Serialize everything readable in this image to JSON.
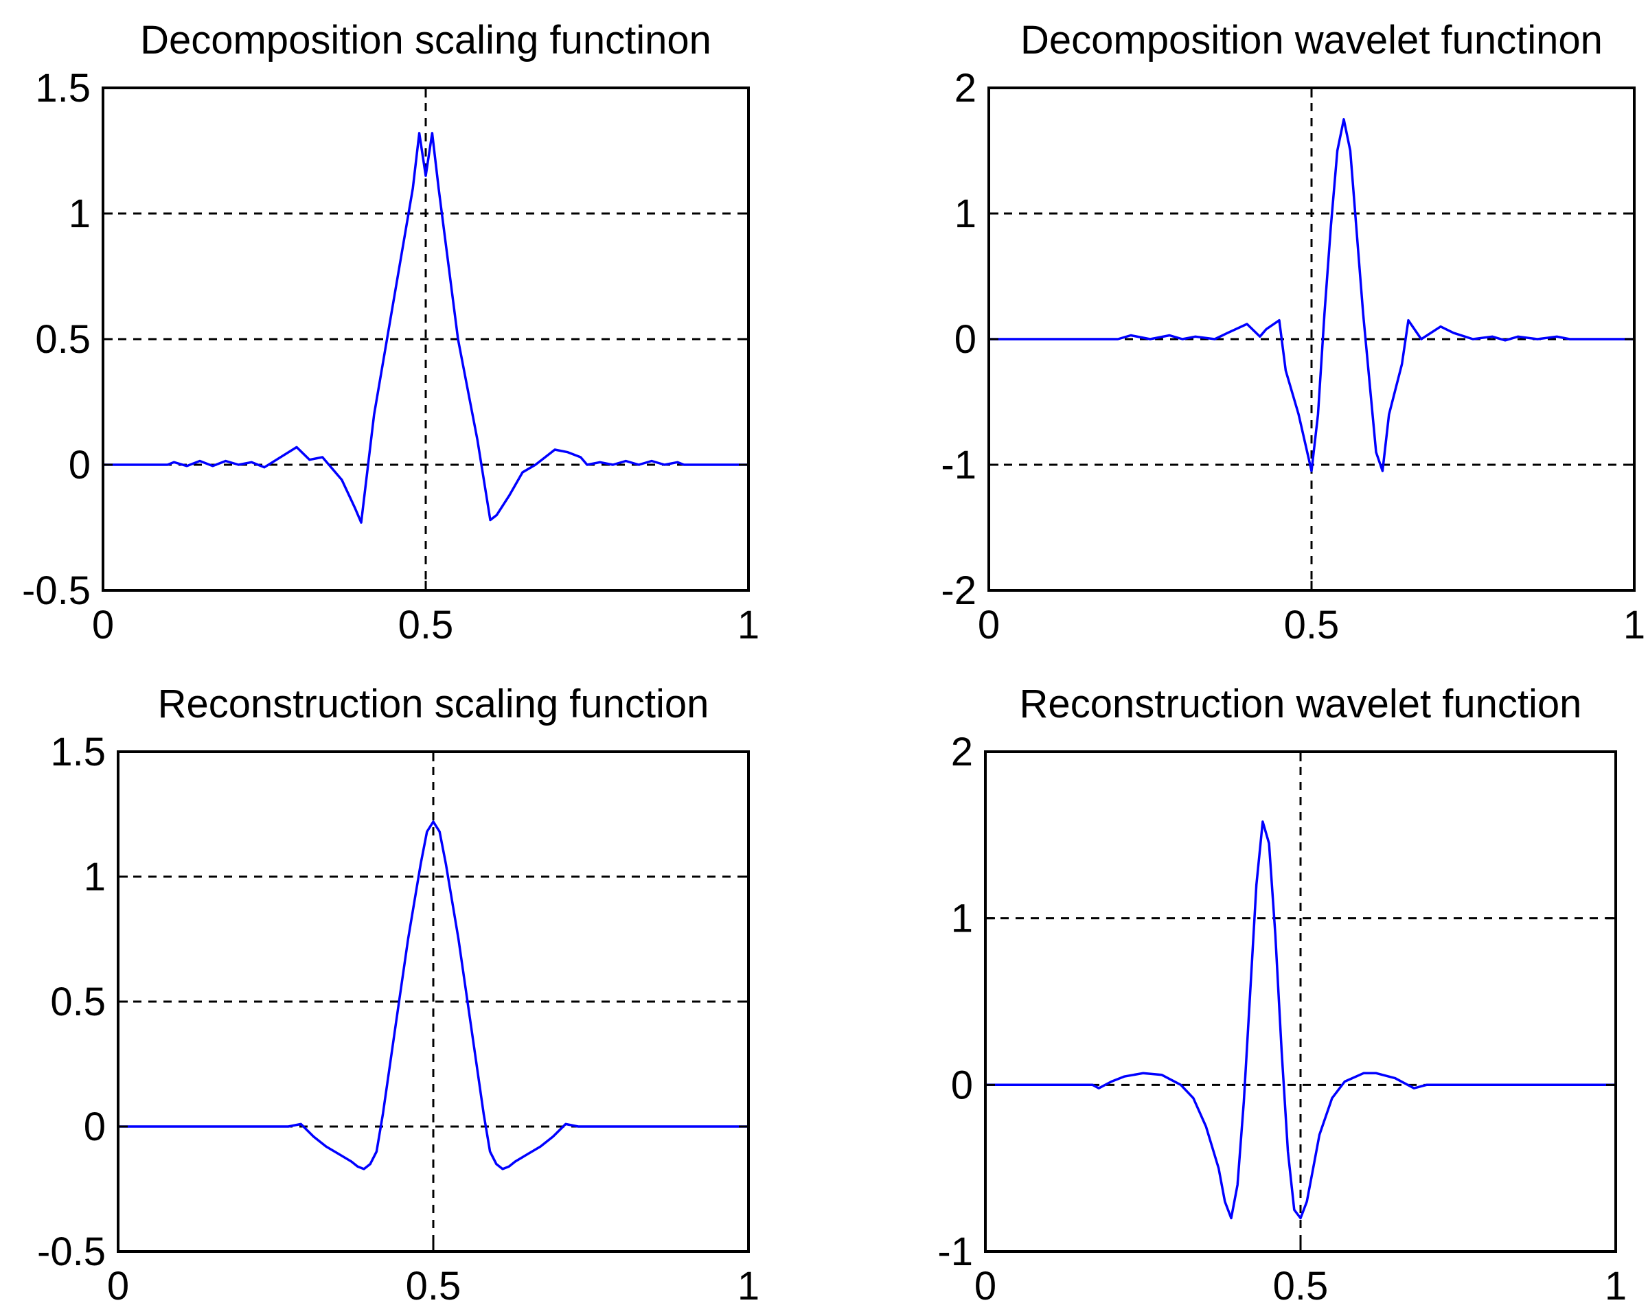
{
  "figure": {
    "background": "#ffffff"
  },
  "chart_data": [
    {
      "type": "line",
      "title": "Decomposition scaling functinon",
      "xlabel": "",
      "ylabel": "",
      "xlim": [
        0,
        1
      ],
      "ylim": [
        -0.5,
        1.5
      ],
      "xticks": [
        "0",
        "0.5",
        "1"
      ],
      "yticks": [
        "-0.5",
        "0",
        "0.5",
        "1",
        "1.5"
      ],
      "xtick_values": [
        0,
        0.5,
        1
      ],
      "ytick_values": [
        -0.5,
        0,
        0.5,
        1,
        1.5
      ],
      "grid": "dashed",
      "line_color": "#0000ff",
      "series": [
        {
          "name": "scaling",
          "x": [
            0,
            0.1,
            0.11,
            0.13,
            0.15,
            0.17,
            0.19,
            0.21,
            0.23,
            0.25,
            0.3,
            0.32,
            0.34,
            0.35,
            0.37,
            0.39,
            0.4,
            0.42,
            0.45,
            0.48,
            0.49,
            0.5,
            0.51,
            0.52,
            0.55,
            0.58,
            0.6,
            0.61,
            0.63,
            0.65,
            0.67,
            0.69,
            0.7,
            0.72,
            0.74,
            0.75,
            0.77,
            0.79,
            0.81,
            0.83,
            0.85,
            0.87,
            0.89,
            0.9,
            1
          ],
          "y": [
            0,
            0,
            0.01,
            -0.005,
            0.015,
            -0.005,
            0.015,
            0,
            0.01,
            -0.01,
            0.07,
            0.02,
            0.03,
            0.0,
            -0.06,
            -0.17,
            -0.23,
            0.2,
            0.65,
            1.1,
            1.32,
            1.15,
            1.32,
            1.1,
            0.5,
            0.1,
            -0.22,
            -0.2,
            -0.12,
            -0.03,
            0.0,
            0.04,
            0.06,
            0.05,
            0.03,
            0.0,
            0.01,
            0.0,
            0.015,
            0.0,
            0.015,
            0.0,
            0.01,
            0,
            0
          ]
        }
      ]
    },
    {
      "type": "line",
      "title": "Decomposition wavelet functinon",
      "xlabel": "",
      "ylabel": "",
      "xlim": [
        0,
        1
      ],
      "ylim": [
        -2,
        2
      ],
      "xticks": [
        "0",
        "0.5",
        "1"
      ],
      "yticks": [
        "-2",
        "-1",
        "0",
        "1",
        "2"
      ],
      "xtick_values": [
        0,
        0.5,
        1
      ],
      "ytick_values": [
        -2,
        -1,
        0,
        1,
        2
      ],
      "grid": "dashed",
      "line_color": "#0000ff",
      "series": [
        {
          "name": "wavelet",
          "x": [
            0,
            0.2,
            0.22,
            0.25,
            0.28,
            0.3,
            0.32,
            0.35,
            0.37,
            0.4,
            0.42,
            0.43,
            0.45,
            0.46,
            0.48,
            0.5,
            0.51,
            0.52,
            0.53,
            0.54,
            0.55,
            0.56,
            0.58,
            0.6,
            0.61,
            0.62,
            0.64,
            0.65,
            0.67,
            0.7,
            0.72,
            0.75,
            0.78,
            0.8,
            0.82,
            0.85,
            0.88,
            0.9,
            1
          ],
          "y": [
            0,
            0,
            0.03,
            0.0,
            0.03,
            0.0,
            0.02,
            0.0,
            0.05,
            0.12,
            0.02,
            0.08,
            0.15,
            -0.25,
            -0.6,
            -1.05,
            -0.6,
            0.2,
            0.9,
            1.5,
            1.75,
            1.5,
            0.2,
            -0.9,
            -1.05,
            -0.6,
            -0.2,
            0.15,
            0.0,
            0.1,
            0.05,
            0.0,
            0.02,
            -0.01,
            0.02,
            0.0,
            0.02,
            0,
            0
          ]
        }
      ]
    },
    {
      "type": "line",
      "title": "Reconstruction scaling function",
      "xlabel": "",
      "ylabel": "",
      "xlim": [
        0,
        1
      ],
      "ylim": [
        -0.5,
        1.5
      ],
      "xticks": [
        "0",
        "0.5",
        "1"
      ],
      "yticks": [
        "-0.5",
        "0",
        "0.5",
        "1",
        "1.5"
      ],
      "xtick_values": [
        0,
        0.5,
        1
      ],
      "ytick_values": [
        -0.5,
        0,
        0.5,
        1,
        1.5
      ],
      "grid": "dashed",
      "line_color": "#0000ff",
      "series": [
        {
          "name": "scaling",
          "x": [
            0,
            0.27,
            0.29,
            0.31,
            0.33,
            0.35,
            0.37,
            0.38,
            0.39,
            0.4,
            0.41,
            0.42,
            0.44,
            0.46,
            0.48,
            0.49,
            0.5,
            0.51,
            0.52,
            0.54,
            0.56,
            0.58,
            0.59,
            0.6,
            0.61,
            0.62,
            0.63,
            0.65,
            0.67,
            0.69,
            0.71,
            0.73,
            1
          ],
          "y": [
            0,
            0,
            0.01,
            -0.04,
            -0.08,
            -0.11,
            -0.14,
            -0.16,
            -0.17,
            -0.15,
            -0.1,
            0.05,
            0.4,
            0.75,
            1.05,
            1.18,
            1.22,
            1.18,
            1.05,
            0.75,
            0.4,
            0.05,
            -0.1,
            -0.15,
            -0.17,
            -0.16,
            -0.14,
            -0.11,
            -0.08,
            -0.04,
            0.01,
            0.0,
            0
          ]
        }
      ]
    },
    {
      "type": "line",
      "title": "Reconstruction wavelet function",
      "xlabel": "",
      "ylabel": "",
      "xlim": [
        0,
        1
      ],
      "ylim": [
        -1,
        2
      ],
      "xticks": [
        "0",
        "0.5",
        "1"
      ],
      "yticks": [
        "-1",
        "0",
        "1",
        "2"
      ],
      "xtick_values": [
        0,
        0.5,
        1
      ],
      "ytick_values": [
        -1,
        0,
        1,
        2
      ],
      "grid": "dashed",
      "line_color": "#0000ff",
      "series": [
        {
          "name": "wavelet",
          "x": [
            0,
            0.17,
            0.18,
            0.2,
            0.22,
            0.25,
            0.28,
            0.31,
            0.33,
            0.35,
            0.37,
            0.38,
            0.39,
            0.4,
            0.41,
            0.42,
            0.43,
            0.44,
            0.45,
            0.46,
            0.47,
            0.48,
            0.49,
            0.5,
            0.51,
            0.52,
            0.53,
            0.55,
            0.57,
            0.6,
            0.62,
            0.65,
            0.68,
            0.7,
            1
          ],
          "y": [
            0,
            0,
            -0.02,
            0.02,
            0.05,
            0.07,
            0.06,
            0.0,
            -0.08,
            -0.25,
            -0.5,
            -0.7,
            -0.8,
            -0.6,
            -0.1,
            0.55,
            1.2,
            1.58,
            1.45,
            0.9,
            0.2,
            -0.4,
            -0.75,
            -0.8,
            -0.7,
            -0.5,
            -0.3,
            -0.08,
            0.02,
            0.07,
            0.07,
            0.04,
            -0.02,
            0,
            0
          ]
        }
      ]
    }
  ]
}
